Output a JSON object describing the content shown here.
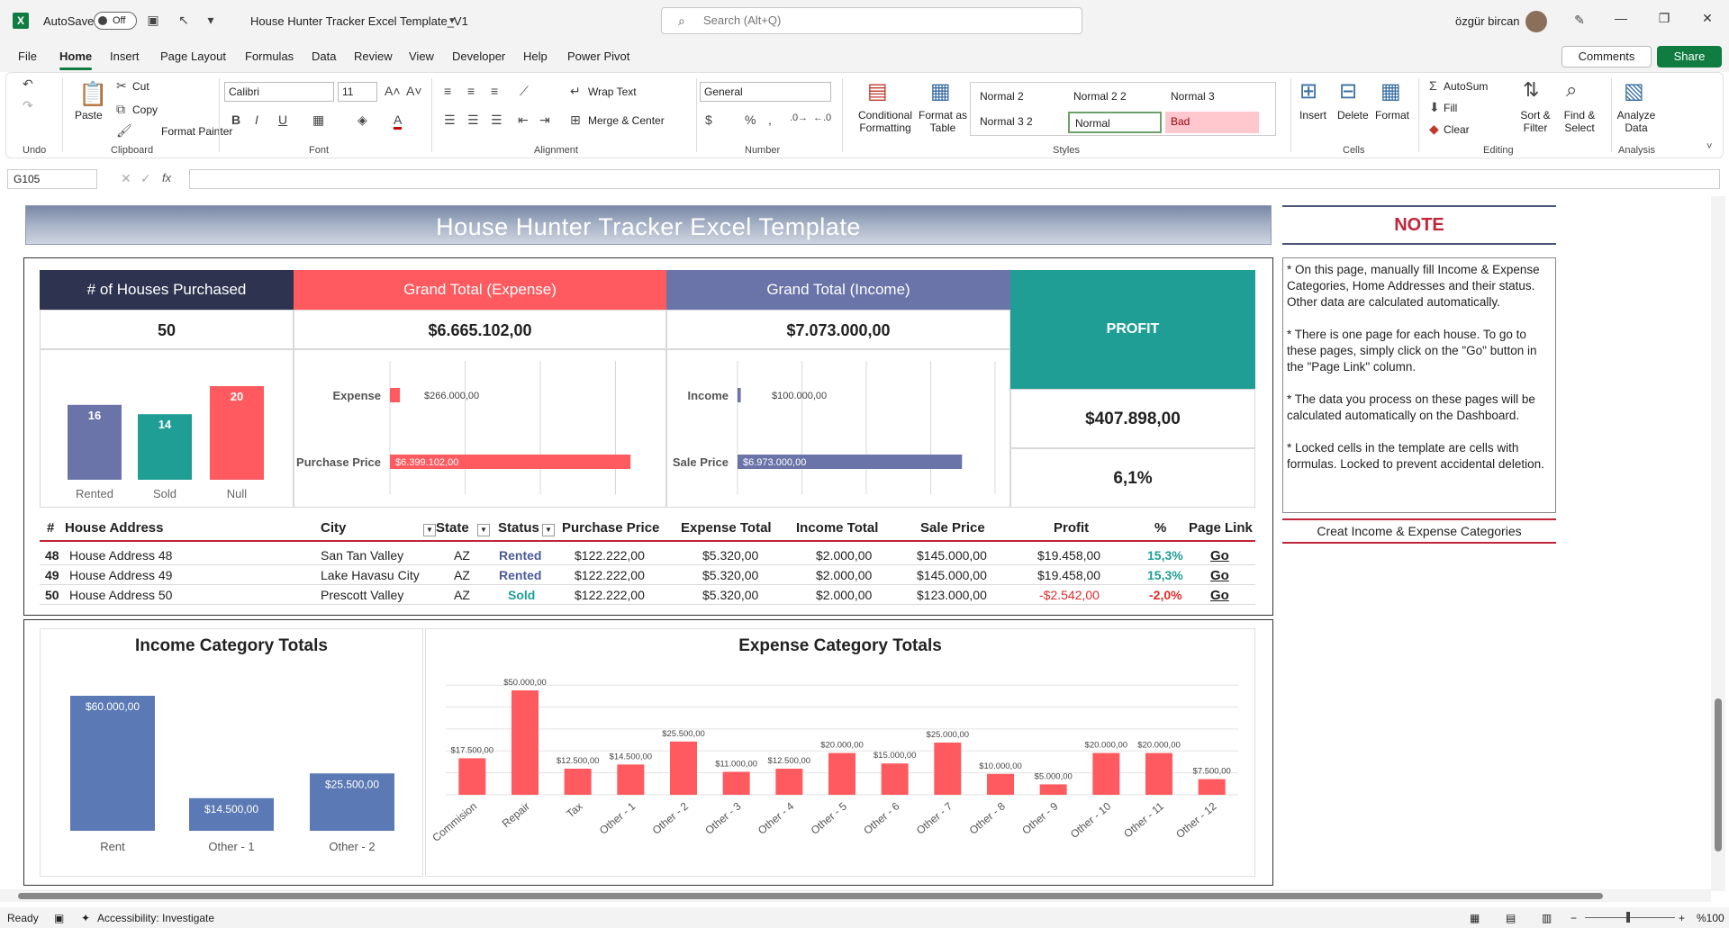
{
  "titlebar": {
    "autosave_label": "AutoSave",
    "autosave_state": "Off",
    "doc_name": "House Hunter Tracker Excel Template_V1",
    "search_placeholder": "Search (Alt+Q)",
    "user_name": "özgür bircan"
  },
  "menu": {
    "items": [
      "File",
      "Home",
      "Insert",
      "Page Layout",
      "Formulas",
      "Data",
      "Review",
      "View",
      "Developer",
      "Help",
      "Power Pivot"
    ],
    "active": "Home",
    "comments_label": "Comments",
    "share_label": "Share"
  },
  "ribbon": {
    "undo_label": "Undo",
    "paste_label": "Paste",
    "cut_label": "Cut",
    "copy_label": "Copy",
    "format_painter_label": "Format Painter",
    "clipboard_label": "Clipboard",
    "font_name": "Calibri",
    "font_size": "11",
    "font_label": "Font",
    "wrap_text_label": "Wrap Text",
    "merge_center_label": "Merge & Center",
    "alignment_label": "Alignment",
    "number_format": "General",
    "number_label": "Number",
    "conditional_formatting_label": "Conditional Formatting",
    "format_as_table_label": "Format as Table",
    "styles_label": "Styles",
    "styles": [
      "Normal 2",
      "Normal 2 2",
      "Normal 3",
      "Normal 3 2",
      "Normal",
      "Bad"
    ],
    "insert_label": "Insert",
    "delete_label": "Delete",
    "format_label": "Format",
    "cells_label": "Cells",
    "autosum_label": "AutoSum",
    "fill_label": "Fill",
    "clear_label": "Clear",
    "sort_filter_label": "Sort & Filter",
    "find_select_label": "Find & Select",
    "editing_label": "Editing",
    "analyze_data_label": "Analyze Data",
    "analysis_label": "Analysis"
  },
  "formula_bar": {
    "name_box": "G105",
    "fx": "fx"
  },
  "sheet": {
    "banner_title": "House Hunter Tracker Excel Template",
    "kpis": {
      "houses_label": "# of Houses Purchased",
      "houses_value": "50",
      "expense_label": "Grand Total (Expense)",
      "expense_value": "$6.665.102,00",
      "income_label": "Grand Total (Income)",
      "income_value": "$7.073.000,00",
      "profit_label": "PROFIT",
      "profit_value": "$407.898,00",
      "profit_pct": "6,1%"
    },
    "table": {
      "headers": [
        "#",
        "House Address",
        "City",
        "State",
        "Status",
        "Purchase Price",
        "Expense Total",
        "Income Total",
        "Sale Price",
        "Profit",
        "%",
        "Page Link"
      ],
      "rows": [
        {
          "num": "48",
          "address": "House Address 48",
          "city": "San Tan Valley",
          "state": "AZ",
          "status": "Rented",
          "purchase": "$122.222,00",
          "expense": "$5.320,00",
          "income": "$2.000,00",
          "sale": "$145.000,00",
          "profit": "$19.458,00",
          "pct": "15,3%",
          "link": "Go"
        },
        {
          "num": "49",
          "address": "House Address 49",
          "city": "Lake Havasu City",
          "state": "AZ",
          "status": "Rented",
          "purchase": "$122.222,00",
          "expense": "$5.320,00",
          "income": "$2.000,00",
          "sale": "$145.000,00",
          "profit": "$19.458,00",
          "pct": "15,3%",
          "link": "Go"
        },
        {
          "num": "50",
          "address": "House Address 50",
          "city": "Prescott Valley",
          "state": "AZ",
          "status": "Sold",
          "purchase": "$122.222,00",
          "expense": "$5.320,00",
          "income": "$2.000,00",
          "sale": "$123.000,00",
          "profit": "-$2.542,00",
          "pct": "-2,0%",
          "link": "Go"
        }
      ]
    },
    "note": {
      "title": "NOTE",
      "paragraphs": [
        "* On this page, manually fill Income & Expense Categories, Home Addresses and their status. Other data are calculated automatically.",
        "* There is one page for each house. To go to these pages, simply click on the \"Go\" button in the \"Page Link\" column.",
        "* The data you process on these pages will be calculated automatically on the Dashboard.",
        "* Locked cells in the template are cells with formulas. Locked to prevent accidental deletion."
      ],
      "link_label": "Creat Income & Expense Categories"
    }
  },
  "chart_data": [
    {
      "type": "bar",
      "title": "",
      "categories": [
        "Rented",
        "Sold",
        "Null"
      ],
      "values": [
        16,
        14,
        20
      ],
      "colors": [
        "#6a74a8",
        "#1f9e96",
        "#ff5a5f"
      ]
    },
    {
      "type": "bar",
      "orientation": "horizontal",
      "title": "",
      "categories": [
        "Expense",
        "Purchase Price"
      ],
      "values": [
        266000,
        6399102
      ],
      "labels": [
        "$266.000,00",
        "$6.399.102,00"
      ],
      "color": "#ff5a5f"
    },
    {
      "type": "bar",
      "orientation": "horizontal",
      "title": "",
      "categories": [
        "Income",
        "Sale Price"
      ],
      "values": [
        100000,
        6973000
      ],
      "labels": [
        "$100.000,00",
        "$6.973.000,00"
      ],
      "color": "#6a74a8"
    },
    {
      "type": "bar",
      "title": "Income Category Totals",
      "categories": [
        "Rent",
        "Other - 1",
        "Other - 2"
      ],
      "values": [
        60000,
        14500,
        25500
      ],
      "labels": [
        "$60.000,00",
        "$14.500,00",
        "$25.500,00"
      ],
      "color": "#5b79b4"
    },
    {
      "type": "bar",
      "title": "Expense Category Totals",
      "categories": [
        "Commision",
        "Repair",
        "Tax",
        "Other - 1",
        "Other - 2",
        "Other - 3",
        "Other - 4",
        "Other - 5",
        "Other - 6",
        "Other - 7",
        "Other - 8",
        "Other - 9",
        "Other - 10",
        "Other - 11",
        "Other - 12"
      ],
      "values": [
        17500,
        50000,
        12500,
        14500,
        25500,
        11000,
        12500,
        20000,
        15000,
        25000,
        10000,
        5000,
        20000,
        20000,
        7500
      ],
      "labels": [
        "$17.500,00",
        "$50.000,00",
        "$12.500,00",
        "$14.500,00",
        "$25.500,00",
        "$11.000,00",
        "$12.500,00",
        "$20.000,00",
        "$15.000,00",
        "$25.000,00",
        "$10.000,00",
        "$5.000,00",
        "$20.000,00",
        "$20.000,00",
        "$7.500,00"
      ],
      "color": "#ff5a5f"
    }
  ],
  "statusbar": {
    "ready": "Ready",
    "accessibility": "Accessibility: Investigate",
    "zoom": "%100"
  }
}
